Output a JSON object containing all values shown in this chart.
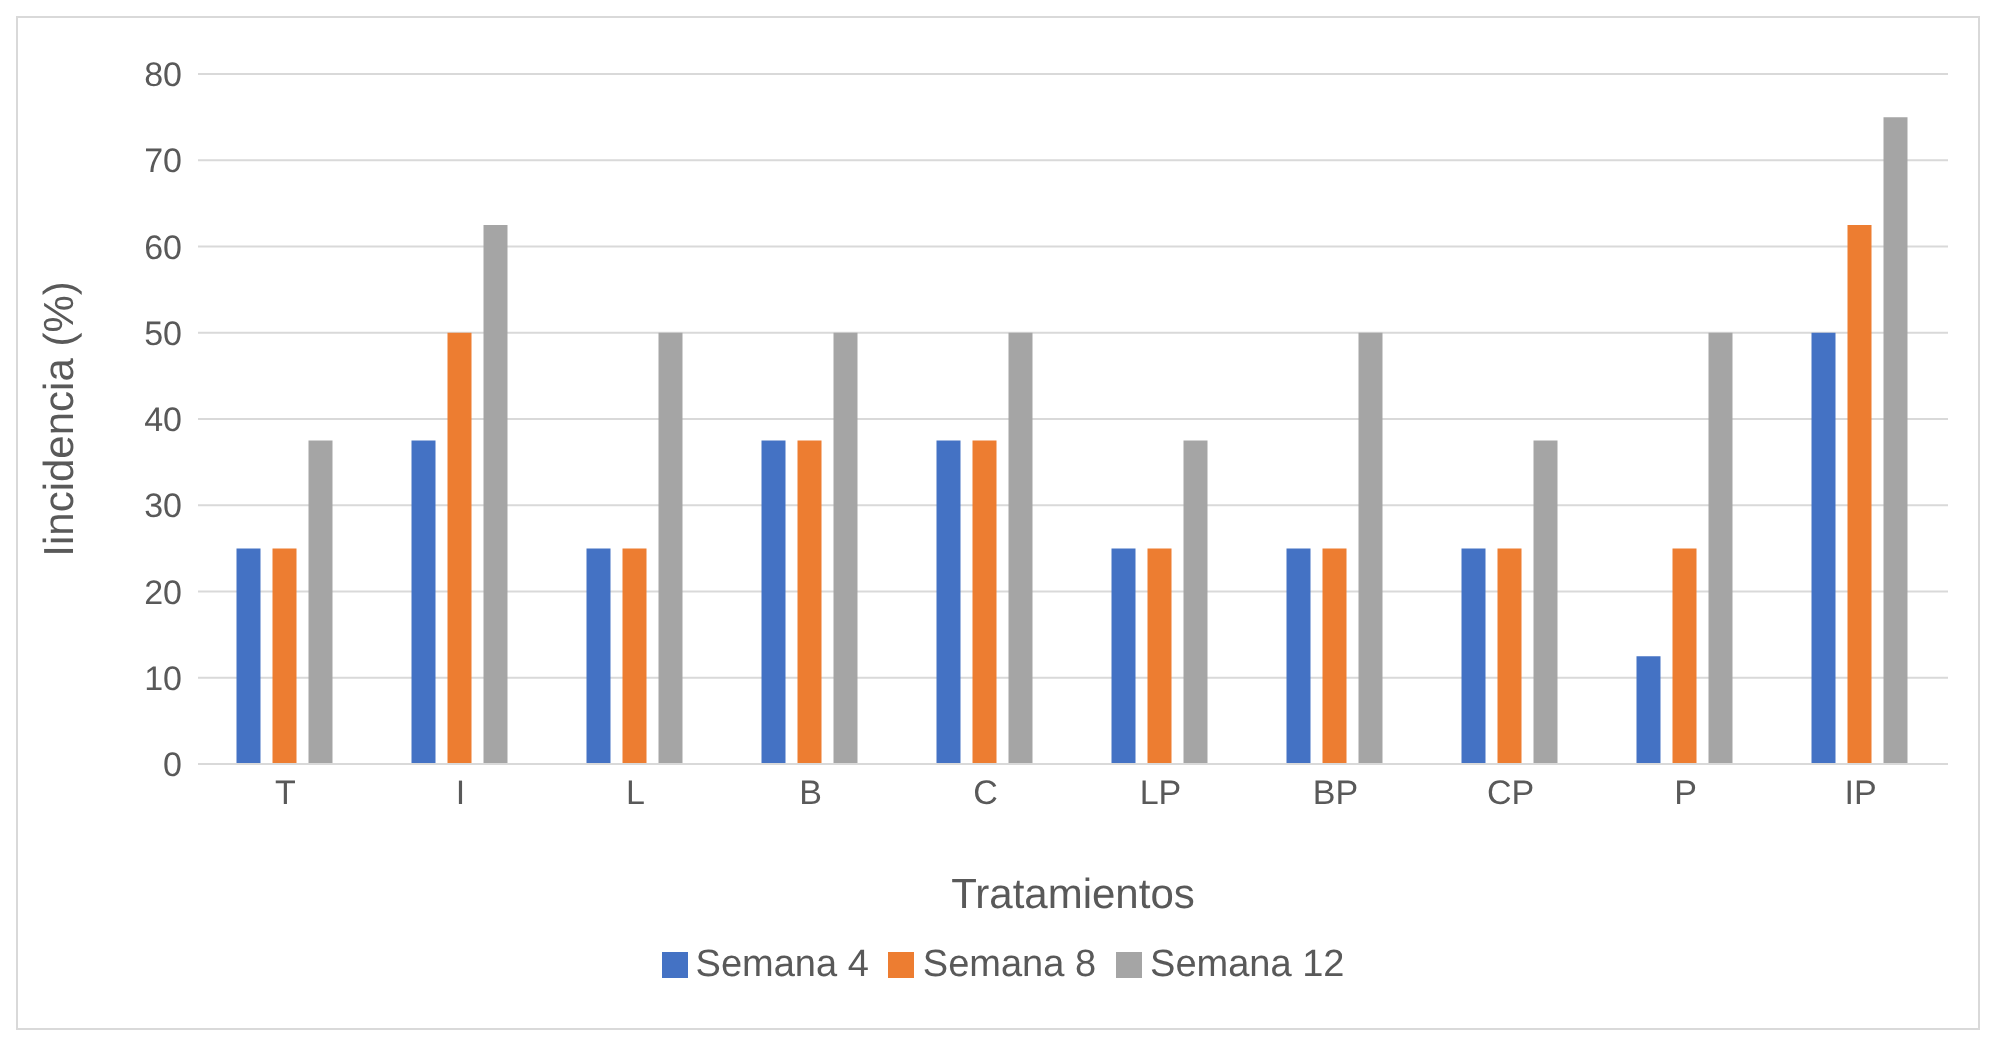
{
  "chart_data": {
    "type": "bar",
    "xlabel": "Tratamientos",
    "ylabel": "Iincidencia (%)",
    "categories": [
      "T",
      "I",
      "L",
      "B",
      "C",
      "LP",
      "BP",
      "CP",
      "P",
      "IP"
    ],
    "series": [
      {
        "name": "Semana 4",
        "color": "#4472c4",
        "values": [
          25,
          37.5,
          25,
          37.5,
          37.5,
          25,
          25,
          25,
          12.5,
          50
        ]
      },
      {
        "name": "Semana 8",
        "color": "#ed7d31",
        "values": [
          25,
          50,
          25,
          37.5,
          37.5,
          25,
          25,
          25,
          25,
          62.5
        ]
      },
      {
        "name": "Semana 12",
        "color": "#a5a5a5",
        "values": [
          37.5,
          62.5,
          50,
          50,
          50,
          37.5,
          50,
          37.5,
          50,
          75
        ]
      }
    ],
    "ylim": [
      0,
      80
    ],
    "yticks": [
      0,
      10,
      20,
      30,
      40,
      50,
      60,
      70,
      80
    ],
    "grid": "y",
    "legend": "bottom"
  }
}
